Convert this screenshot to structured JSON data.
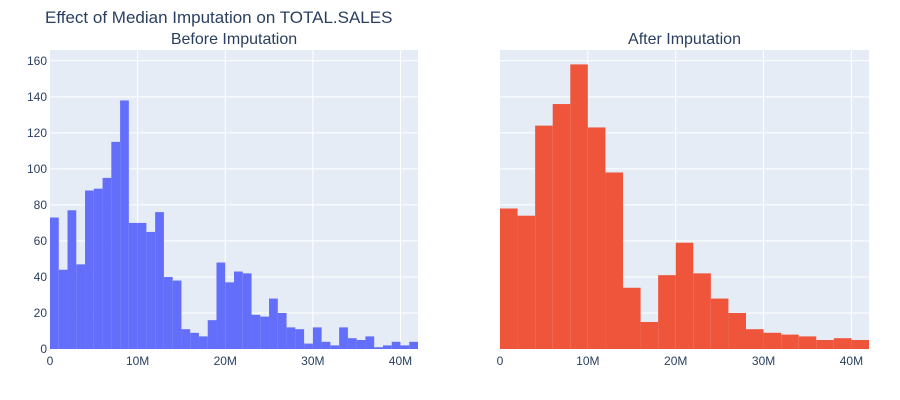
{
  "title": "Effect of Median Imputation on TOTAL.SALES",
  "colors": {
    "plot_background": "#e5ecf6",
    "grid": "#ffffff",
    "text": "#2a3f5f",
    "before_bars": "#636efa",
    "after_bars": "#ef553b"
  },
  "chart_data": [
    {
      "type": "histogram",
      "title": "Before Imputation",
      "xlabel": "",
      "ylabel": "",
      "grid": true,
      "xlim": [
        0,
        42000000
      ],
      "ylim": [
        0,
        166
      ],
      "x_ticks": [
        {
          "value": 0,
          "label": "0"
        },
        {
          "value": 10000000,
          "label": "10M"
        },
        {
          "value": 20000000,
          "label": "20M"
        },
        {
          "value": 30000000,
          "label": "30M"
        },
        {
          "value": 40000000,
          "label": "40M"
        }
      ],
      "y_ticks": [
        {
          "value": 0,
          "label": "0"
        },
        {
          "value": 20,
          "label": "20"
        },
        {
          "value": 40,
          "label": "40"
        },
        {
          "value": 60,
          "label": "60"
        },
        {
          "value": 80,
          "label": "80"
        },
        {
          "value": 100,
          "label": "100"
        },
        {
          "value": 120,
          "label": "120"
        },
        {
          "value": 140,
          "label": "140"
        },
        {
          "value": 160,
          "label": "160"
        }
      ],
      "bin_size": 1000000,
      "bin_start": 0,
      "values": [
        73,
        44,
        77,
        47,
        88,
        89,
        95,
        115,
        138,
        70,
        70,
        65,
        76,
        40,
        38,
        11,
        9,
        7,
        16,
        48,
        37,
        43,
        42,
        19,
        18,
        28,
        20,
        12,
        11,
        3,
        12,
        4,
        2,
        12,
        6,
        5,
        7,
        1,
        2,
        4,
        2,
        4
      ]
    },
    {
      "type": "histogram",
      "title": "After Imputation",
      "xlabel": "",
      "ylabel": "",
      "grid": true,
      "xlim": [
        0,
        42000000
      ],
      "ylim": [
        0,
        166
      ],
      "x_ticks": [
        {
          "value": 0,
          "label": "0"
        },
        {
          "value": 10000000,
          "label": "10M"
        },
        {
          "value": 20000000,
          "label": "20M"
        },
        {
          "value": 30000000,
          "label": "30M"
        },
        {
          "value": 40000000,
          "label": "40M"
        }
      ],
      "y_ticks": [],
      "bin_size": 2000000,
      "bin_start": 0,
      "values": [
        78,
        74,
        124,
        136,
        158,
        123,
        98,
        34,
        15,
        41,
        59,
        42,
        28,
        20,
        11,
        9,
        8,
        7,
        5,
        6,
        5
      ]
    }
  ]
}
